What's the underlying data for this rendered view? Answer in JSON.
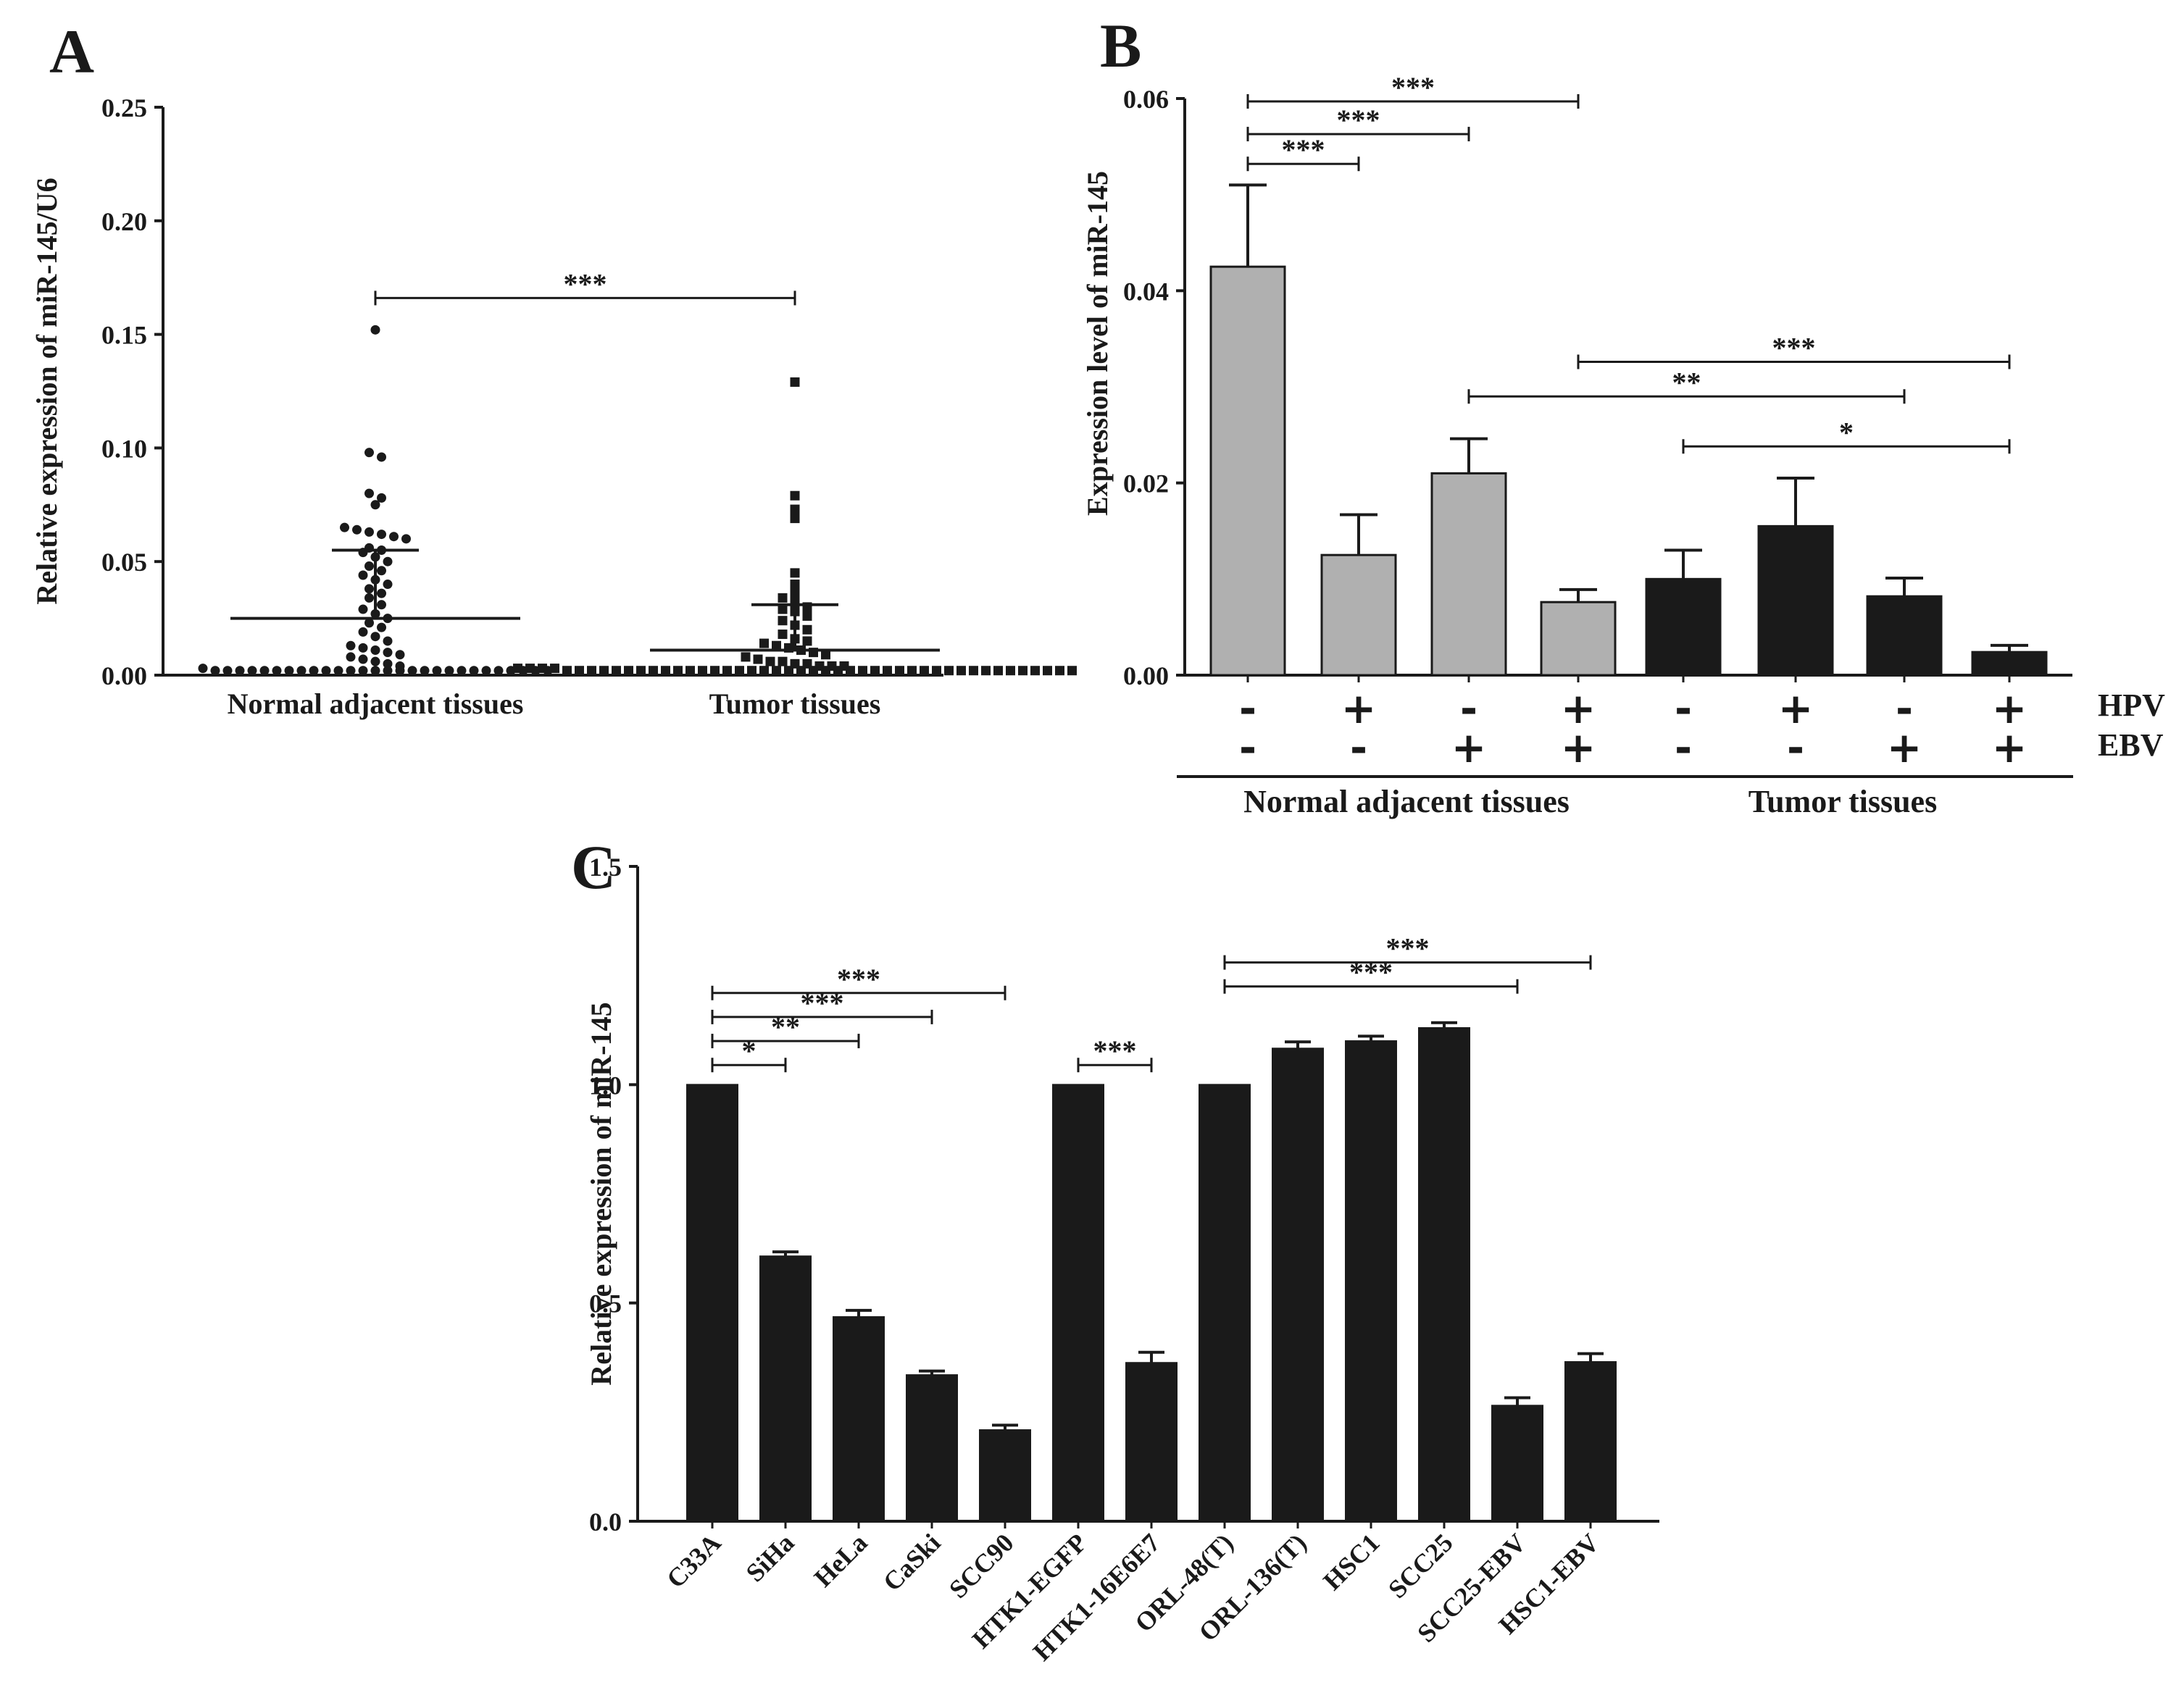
{
  "chart_data": [
    {
      "panel": "A",
      "type": "scatter",
      "ylabel": "Relative expression of miR-145/U6",
      "ylim": [
        0,
        0.25
      ],
      "yticks": [
        "0.00",
        "0.05",
        "0.10",
        "0.15",
        "0.20",
        "0.25"
      ],
      "yticks_values": [
        0,
        0.05,
        0.1,
        0.15,
        0.2,
        0.25
      ],
      "categories": [
        "Normal adjacent tissues",
        "Tumor tissues"
      ],
      "series": [
        {
          "name": "Normal adjacent tissues",
          "marker": "circle",
          "mean": 0.025,
          "sd_upper": 0.055,
          "values": [
            0.152,
            0.098,
            0.096,
            0.08,
            0.078,
            0.075,
            0.065,
            0.064,
            0.063,
            0.062,
            0.061,
            0.06,
            0.056,
            0.055,
            0.054,
            0.052,
            0.05,
            0.048,
            0.046,
            0.044,
            0.042,
            0.04,
            0.038,
            0.036,
            0.034,
            0.031,
            0.029,
            0.027,
            0.025,
            0.023,
            0.021,
            0.019,
            0.017,
            0.015,
            0.013,
            0.012,
            0.011,
            0.01,
            0.009,
            0.008,
            0.007,
            0.006,
            0.005,
            0.004,
            0.003,
            0.002,
            0.002,
            0.002,
            0.002,
            0.002,
            0.002,
            0.002,
            0.002,
            0.002,
            0.002,
            0.002,
            0.002,
            0.002,
            0.002,
            0.002,
            0.002,
            0.002,
            0.002,
            0.002,
            0.002,
            0.002,
            0.002,
            0.002,
            0.002,
            0.002,
            0.002,
            0.002,
            0.002
          ]
        },
        {
          "name": "Tumor tissues",
          "marker": "square",
          "mean": 0.011,
          "sd_upper": 0.031,
          "values": [
            0.129,
            0.079,
            0.073,
            0.069,
            0.045,
            0.04,
            0.036,
            0.034,
            0.032,
            0.03,
            0.029,
            0.028,
            0.026,
            0.024,
            0.022,
            0.02,
            0.018,
            0.016,
            0.015,
            0.014,
            0.013,
            0.012,
            0.011,
            0.01,
            0.009,
            0.008,
            0.007,
            0.006,
            0.006,
            0.005,
            0.005,
            0.004,
            0.004,
            0.004,
            0.003,
            0.003,
            0.003,
            0.003,
            0.002,
            0.002,
            0.002,
            0.002,
            0.002,
            0.002,
            0.002,
            0.002,
            0.002,
            0.002,
            0.002,
            0.002,
            0.002,
            0.002,
            0.002,
            0.002,
            0.002,
            0.002,
            0.002,
            0.002,
            0.002,
            0.002,
            0.002,
            0.002,
            0.002,
            0.002,
            0.002,
            0.002,
            0.002,
            0.002,
            0.002,
            0.002,
            0.002,
            0.002,
            0.002,
            0.002,
            0.002,
            0.002,
            0.002,
            0.002,
            0.002,
            0.002
          ]
        }
      ],
      "significance": [
        {
          "from": 0,
          "to": 1,
          "y": 0.166,
          "label": "***"
        }
      ]
    },
    {
      "panel": "B",
      "type": "bar",
      "ylabel": "Expression level of miR-145",
      "ylim": [
        0,
        0.06
      ],
      "yticks": [
        "0.00",
        "0.02",
        "0.04",
        "0.06"
      ],
      "yticks_values": [
        0,
        0.02,
        0.04,
        0.06
      ],
      "values": [
        0.0425,
        0.0125,
        0.021,
        0.0076,
        0.01,
        0.0155,
        0.0082,
        0.0024
      ],
      "errors": [
        0.0085,
        0.0042,
        0.0036,
        0.0013,
        0.003,
        0.005,
        0.0019,
        0.0007
      ],
      "colors": [
        "#b0b0b0",
        "#b0b0b0",
        "#b0b0b0",
        "#b0b0b0",
        "#1a1a1a",
        "#1a1a1a",
        "#1a1a1a",
        "#1a1a1a"
      ],
      "hpv": [
        "-",
        "+",
        "-",
        "+",
        "-",
        "+",
        "-",
        "+"
      ],
      "ebv": [
        "-",
        "-",
        "+",
        "+",
        "-",
        "-",
        "+",
        "+"
      ],
      "row_labels": [
        "HPV",
        "EBV"
      ],
      "groups": [
        {
          "label": "Normal adjacent tissues",
          "from": 0,
          "to": 3
        },
        {
          "label": "Tumor tissues",
          "from": 4,
          "to": 7
        }
      ],
      "significance": [
        {
          "from": 0,
          "to": 3,
          "y": 0.0597,
          "label": "***"
        },
        {
          "from": 0,
          "to": 2,
          "y": 0.0563,
          "label": "***"
        },
        {
          "from": 0,
          "to": 1,
          "y": 0.0532,
          "label": "***"
        },
        {
          "from": 3,
          "to": 7,
          "y": 0.0326,
          "label": "***"
        },
        {
          "from": 2,
          "to": 6,
          "y": 0.029,
          "label": "**"
        },
        {
          "from": 4,
          "to": 7,
          "y": 0.0238,
          "label": "*"
        }
      ]
    },
    {
      "panel": "C",
      "type": "bar",
      "ylabel": "Relative expression of miR-145",
      "ylim": [
        0,
        1.5
      ],
      "yticks": [
        "0.0",
        "0.5",
        "1.0",
        "1.5"
      ],
      "yticks_values": [
        0,
        0.5,
        1.0,
        1.5
      ],
      "categories": [
        "C33A",
        "SiHa",
        "HeLa",
        "CaSki",
        "SCC90",
        "HTK1-EGFP",
        "HTK1-16E6E7",
        "ORL-48(T)",
        "ORL-136(T)",
        "HSC1",
        "SCC25",
        "SCC25-EBV",
        "HSC1-EBV"
      ],
      "values": [
        1.0,
        0.607,
        0.468,
        0.335,
        0.209,
        1.0,
        0.363,
        1.0,
        1.083,
        1.1,
        1.13,
        0.265,
        0.365
      ],
      "errors": [
        0.0,
        0.01,
        0.015,
        0.009,
        0.011,
        0.0,
        0.024,
        0.0,
        0.015,
        0.011,
        0.012,
        0.018,
        0.019
      ],
      "colors": [
        "#1a1a1a"
      ],
      "significance": [
        {
          "from": 0,
          "to": 4,
          "y": 1.21,
          "label": "***"
        },
        {
          "from": 0,
          "to": 3,
          "y": 1.155,
          "label": "***"
        },
        {
          "from": 0,
          "to": 2,
          "y": 1.1,
          "label": "**"
        },
        {
          "from": 0,
          "to": 1,
          "y": 1.045,
          "label": "*"
        },
        {
          "from": 5,
          "to": 6,
          "y": 1.045,
          "label": "***"
        },
        {
          "from": 7,
          "to": 12,
          "y": 1.28,
          "label": "***"
        },
        {
          "from": 7,
          "to": 11,
          "y": 1.225,
          "label": "***"
        }
      ]
    }
  ]
}
